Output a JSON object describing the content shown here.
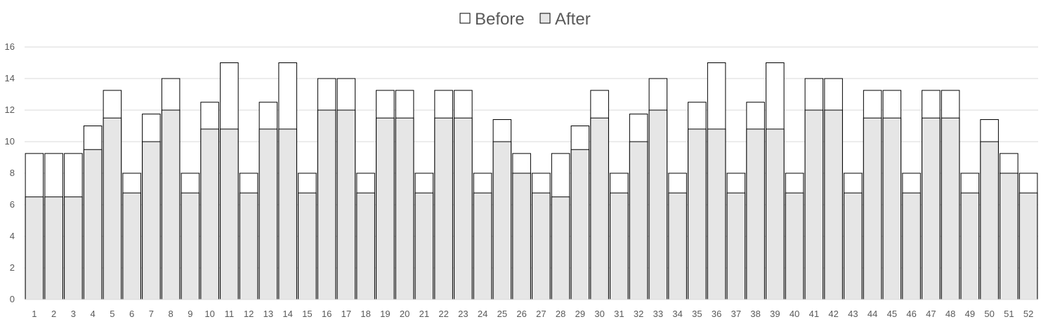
{
  "chart_data": {
    "type": "bar",
    "stacked": false,
    "overlapping": true,
    "categories": [
      "1",
      "2",
      "3",
      "4",
      "5",
      "6",
      "7",
      "8",
      "9",
      "10",
      "11",
      "12",
      "13",
      "14",
      "15",
      "16",
      "17",
      "18",
      "19",
      "20",
      "21",
      "22",
      "23",
      "24",
      "25",
      "26",
      "27",
      "28",
      "29",
      "30",
      "31",
      "32",
      "33",
      "34",
      "35",
      "36",
      "37",
      "38",
      "39",
      "40",
      "41",
      "42",
      "43",
      "44",
      "45",
      "46",
      "47",
      "48",
      "49",
      "50",
      "51",
      "52"
    ],
    "series": [
      {
        "name": "Before",
        "color": "#ffffff",
        "stroke": "#000000",
        "values": [
          9.25,
          9.25,
          9.25,
          11,
          13.25,
          8,
          11.75,
          14,
          8,
          12.5,
          15,
          8,
          12.5,
          15,
          8,
          14,
          14,
          8,
          13.25,
          13.25,
          8,
          13.25,
          13.25,
          8,
          11.4,
          9.25,
          8,
          9.25,
          11,
          13.25,
          8,
          11.75,
          14,
          8,
          12.5,
          15,
          8,
          12.5,
          15,
          8,
          14,
          14,
          8,
          13.25,
          13.25,
          8,
          13.25,
          13.25,
          8,
          11.4,
          9.25,
          8
        ]
      },
      {
        "name": "After",
        "color": "#e6e6e6",
        "stroke": "#000000",
        "values": [
          6.5,
          6.5,
          6.5,
          9.5,
          11.5,
          6.75,
          10,
          12,
          6.75,
          10.8,
          10.8,
          6.75,
          10.8,
          10.8,
          6.75,
          12,
          12,
          6.75,
          11.5,
          11.5,
          6.75,
          11.5,
          11.5,
          6.75,
          10,
          8,
          6.75,
          6.5,
          9.5,
          11.5,
          6.75,
          10,
          12,
          6.75,
          10.8,
          10.8,
          6.75,
          10.8,
          10.8,
          6.75,
          12,
          12,
          6.75,
          11.5,
          11.5,
          6.75,
          11.5,
          11.5,
          6.75,
          10,
          8,
          6.75
        ]
      }
    ],
    "yticks": [
      0,
      2,
      4,
      6,
      8,
      10,
      12,
      14,
      16
    ],
    "ylim": [
      0,
      16
    ],
    "grid": true,
    "gridline_color": "#d9d9d9",
    "legend_position": "top-center",
    "title": "",
    "xlabel": "",
    "ylabel": ""
  }
}
